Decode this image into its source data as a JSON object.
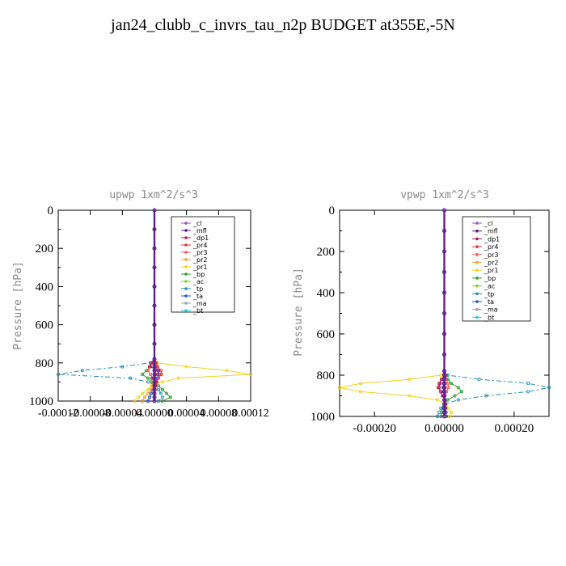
{
  "figure": {
    "title": "jan24_clubb_c_invrs_tau_n2p  BUDGET at355E,-5N"
  },
  "series_colors": {
    "_cl": "#9a4fc9",
    "_mfl": "#5c1a8a",
    "_dp1": "#b0175a",
    "_pr4": "#d63a3a",
    "_pr3": "#ee5a5a",
    "_pr2": "#f5a030",
    "_pr1": "#f2d21e",
    "_bp": "#2ca02c",
    "_ac": "#7ed321",
    "_tp": "#1f8fb5",
    "_ta": "#2a4fd6",
    "_ma": "#9aa0a8",
    "_bt": "#22d3e6"
  },
  "chart_data": [
    {
      "type": "line",
      "title": "upwp  1xm^2/s^3",
      "ylabel": "Pressure [hPa]",
      "xlabel": "",
      "xlim": [
        -0.00012,
        0.00012
      ],
      "ylim": [
        1000,
        0
      ],
      "x_ticks": [
        "-0.00012",
        "-0.00008",
        "-0.00004",
        "0.00000",
        "0.00004",
        "0.00008",
        "0.00012"
      ],
      "y_ticks": [
        "0",
        "200",
        "400",
        "600",
        "800",
        "1000"
      ],
      "legend": [
        "_cl",
        "_mfl",
        "_dp1",
        "_pr4",
        "_pr3",
        "_pr2",
        "_pr1",
        "_bp",
        "_ac",
        "_tp",
        "_ta",
        "_ma",
        "_bt"
      ],
      "legend_position": "top-right",
      "pressure": [
        0,
        100,
        200,
        300,
        400,
        500,
        600,
        700,
        780,
        800,
        820,
        840,
        860,
        880,
        900,
        920,
        940,
        960,
        980,
        1000
      ],
      "series": [
        {
          "name": "_cl",
          "values": [
            0,
            0,
            0,
            0,
            0,
            0,
            0,
            0,
            0,
            0,
            0,
            0,
            0,
            0,
            0,
            0,
            0,
            0,
            0,
            0
          ]
        },
        {
          "name": "_mfl",
          "values": [
            0,
            0,
            0,
            0,
            0,
            0,
            0,
            0,
            0,
            0,
            0,
            0,
            0,
            0,
            0,
            0,
            0,
            0,
            0,
            0
          ]
        },
        {
          "name": "_dp1",
          "values": [
            0,
            0,
            0,
            0,
            0,
            0,
            0,
            0,
            0,
            -4e-06,
            -6e-06,
            5e-06,
            4e-06,
            -3e-06,
            2e-06,
            1e-06,
            0,
            0,
            0,
            0
          ]
        },
        {
          "name": "_pr4",
          "values": [
            0,
            0,
            0,
            0,
            0,
            0,
            0,
            0,
            0,
            2e-06,
            4e-06,
            8e-06,
            9e-06,
            5e-06,
            3e-06,
            1e-06,
            0,
            0,
            0,
            0
          ]
        },
        {
          "name": "_pr3",
          "values": [
            0,
            0,
            0,
            0,
            0,
            0,
            0,
            0,
            0,
            1e-06,
            -6e-06,
            -8e-06,
            -5e-06,
            -2e-06,
            1e-06,
            2e-06,
            1e-06,
            0,
            0,
            0
          ]
        },
        {
          "name": "_pr2",
          "values": [
            0,
            0,
            0,
            0,
            0,
            0,
            0,
            0,
            0,
            0,
            1e-06,
            2e-06,
            1e-06,
            0,
            -1e-06,
            -2e-06,
            -4e-06,
            -8e-06,
            -1.2e-05,
            -1.5e-05
          ]
        },
        {
          "name": "_pr1",
          "values": [
            0,
            0,
            0,
            0,
            0,
            0,
            0,
            0,
            0,
            4e-06,
            4e-05,
            9e-05,
            0.00012,
            3e-05,
            1e-05,
            -4e-06,
            -8e-06,
            -1.5e-05,
            -2e-05,
            -2.5e-05
          ]
        },
        {
          "name": "_bp",
          "values": [
            0,
            0,
            0,
            0,
            0,
            0,
            0,
            0,
            0,
            0,
            -5e-06,
            -1e-05,
            -1.5e-05,
            -8e-06,
            -3e-06,
            5e-06,
            1e-05,
            1.5e-05,
            2e-05,
            1e-05
          ]
        },
        {
          "name": "_ac",
          "values": [
            0,
            0,
            0,
            0,
            0,
            0,
            0,
            0,
            0,
            0,
            0,
            0,
            0,
            0,
            0,
            0,
            0,
            0,
            0,
            0
          ]
        },
        {
          "name": "_tp",
          "values": [
            0,
            0,
            0,
            0,
            0,
            0,
            0,
            0,
            0,
            -5e-06,
            -4e-05,
            -9e-05,
            -0.00012,
            -3e-05,
            -8e-06,
            2e-06,
            5e-06,
            8e-06,
            1e-05,
            5e-06
          ]
        },
        {
          "name": "_ta",
          "values": [
            0,
            0,
            0,
            0,
            0,
            0,
            0,
            0,
            0,
            0,
            2e-06,
            4e-06,
            6e-06,
            3e-06,
            1e-06,
            0,
            -2e-06,
            -4e-06,
            -6e-06,
            -8e-06
          ]
        },
        {
          "name": "_ma",
          "values": [
            0,
            0,
            0,
            0,
            0,
            0,
            0,
            0,
            0,
            0,
            0,
            0,
            0,
            0,
            0,
            0,
            0,
            0,
            0,
            0
          ]
        },
        {
          "name": "_bt",
          "values": [
            0,
            0,
            0,
            0,
            0,
            0,
            0,
            0,
            0,
            0,
            0,
            0,
            0,
            0,
            0,
            0,
            0,
            0,
            0,
            0
          ]
        }
      ]
    },
    {
      "type": "line",
      "title": "vpwp  1xm^2/s^3",
      "ylabel": "Pressure [hPa]",
      "xlabel": "",
      "xlim": [
        -0.0003,
        0.0003
      ],
      "ylim": [
        1000,
        0
      ],
      "x_ticks": [
        "-0.00020",
        "0.00000",
        "0.00020"
      ],
      "y_ticks": [
        "0",
        "200",
        "400",
        "600",
        "800",
        "1000"
      ],
      "legend": [
        "_cl",
        "_mfl",
        "_dp1",
        "_pr4",
        "_pr3",
        "_pr2",
        "_pr1",
        "_bp",
        "_ac",
        "_tp",
        "_ta",
        "_ma",
        "_bt"
      ],
      "legend_position": "top-right",
      "pressure": [
        0,
        100,
        200,
        300,
        400,
        500,
        600,
        700,
        780,
        800,
        820,
        840,
        860,
        880,
        900,
        920,
        940,
        960,
        980,
        1000
      ],
      "series": [
        {
          "name": "_cl",
          "values": [
            0,
            0,
            0,
            0,
            0,
            0,
            0,
            0,
            0,
            0,
            0,
            0,
            0,
            0,
            0,
            0,
            0,
            0,
            0,
            0
          ]
        },
        {
          "name": "_mfl",
          "values": [
            0,
            0,
            0,
            0,
            0,
            0,
            0,
            0,
            0,
            0,
            0,
            0,
            0,
            0,
            0,
            0,
            0,
            0,
            0,
            0
          ]
        },
        {
          "name": "_dp1",
          "values": [
            0,
            0,
            0,
            0,
            0,
            0,
            0,
            0,
            0,
            5e-06,
            -8e-06,
            -1.2e-05,
            -1.5e-05,
            -1e-05,
            -5e-06,
            2e-06,
            4e-06,
            3e-06,
            2e-06,
            1e-06
          ]
        },
        {
          "name": "_pr4",
          "values": [
            0,
            0,
            0,
            0,
            0,
            0,
            0,
            0,
            0,
            0,
            -8e-06,
            -1.5e-05,
            -1.8e-05,
            -1e-05,
            -4e-06,
            0,
            2e-06,
            1e-06,
            0,
            0
          ]
        },
        {
          "name": "_pr3",
          "values": [
            0,
            0,
            0,
            0,
            0,
            0,
            0,
            0,
            0,
            0,
            5e-06,
            1e-05,
            1.2e-05,
            6e-06,
            2e-06,
            0,
            0,
            0,
            0,
            0
          ]
        },
        {
          "name": "_pr2",
          "values": [
            0,
            0,
            0,
            0,
            0,
            0,
            0,
            0,
            0,
            0,
            0,
            2e-06,
            3e-06,
            2e-06,
            1e-06,
            0,
            0,
            0,
            0,
            0
          ]
        },
        {
          "name": "_pr1",
          "values": [
            0,
            0,
            0,
            0,
            0,
            0,
            0,
            0,
            0,
            -1e-05,
            -0.0001,
            -0.00024,
            -0.0003,
            -0.00024,
            -0.0001,
            -2e-05,
            5e-06,
            1e-05,
            2e-05,
            1.5e-05
          ]
        },
        {
          "name": "_bp",
          "values": [
            0,
            0,
            0,
            0,
            0,
            0,
            0,
            0,
            0,
            0,
            1e-05,
            2e-05,
            4e-05,
            5e-05,
            3e-05,
            1e-05,
            0,
            -5e-06,
            -8e-06,
            -1e-05
          ]
        },
        {
          "name": "_ac",
          "values": [
            0,
            0,
            0,
            0,
            0,
            0,
            0,
            0,
            0,
            0,
            0,
            0,
            0,
            0,
            0,
            0,
            0,
            0,
            0,
            0
          ]
        },
        {
          "name": "_tp",
          "values": [
            0,
            0,
            0,
            0,
            0,
            0,
            0,
            0,
            0,
            1e-05,
            0.0001,
            0.00024,
            0.0003,
            0.00024,
            0.00012,
            4e-05,
            0,
            -1e-05,
            -1.5e-05,
            -2e-05
          ]
        },
        {
          "name": "_ta",
          "values": [
            0,
            0,
            0,
            0,
            0,
            0,
            0,
            0,
            0,
            0,
            0,
            -2e-06,
            -4e-06,
            -2e-06,
            0,
            2e-06,
            3e-06,
            4e-06,
            5e-06,
            6e-06
          ]
        },
        {
          "name": "_ma",
          "values": [
            0,
            0,
            0,
            0,
            0,
            0,
            0,
            0,
            0,
            0,
            0,
            0,
            0,
            0,
            0,
            0,
            0,
            0,
            0,
            0
          ]
        },
        {
          "name": "_bt",
          "values": [
            0,
            0,
            0,
            0,
            0,
            0,
            0,
            0,
            0,
            0,
            0,
            0,
            0,
            0,
            0,
            0,
            0,
            0,
            0,
            0
          ]
        }
      ]
    }
  ]
}
